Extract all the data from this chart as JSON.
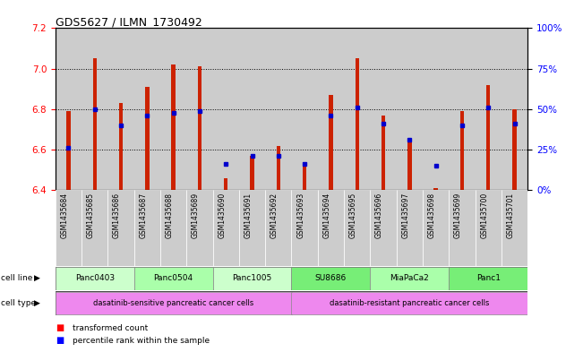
{
  "title": "GDS5627 / ILMN_1730492",
  "samples": [
    "GSM1435684",
    "GSM1435685",
    "GSM1435686",
    "GSM1435687",
    "GSM1435688",
    "GSM1435689",
    "GSM1435690",
    "GSM1435691",
    "GSM1435692",
    "GSM1435693",
    "GSM1435694",
    "GSM1435695",
    "GSM1435696",
    "GSM1435697",
    "GSM1435698",
    "GSM1435699",
    "GSM1435700",
    "GSM1435701"
  ],
  "red_values": [
    6.79,
    7.05,
    6.83,
    6.91,
    7.02,
    7.01,
    6.46,
    6.57,
    6.62,
    6.52,
    6.87,
    7.05,
    6.77,
    6.65,
    6.41,
    6.79,
    6.92,
    6.8
  ],
  "blue_values": [
    6.61,
    6.8,
    6.72,
    6.77,
    6.78,
    6.79,
    6.53,
    6.57,
    6.57,
    6.53,
    6.77,
    6.81,
    6.73,
    6.65,
    6.52,
    6.72,
    6.81,
    6.73
  ],
  "ylim_left": [
    6.4,
    7.2
  ],
  "ylim_right": [
    0,
    100
  ],
  "yticks_left": [
    6.4,
    6.6,
    6.8,
    7.0,
    7.2
  ],
  "yticks_right": [
    0,
    25,
    50,
    75,
    100
  ],
  "ytick_labels_right": [
    "0%",
    "25%",
    "50%",
    "75%",
    "100%"
  ],
  "cell_lines": [
    {
      "label": "Panc0403",
      "start": 0,
      "end": 2
    },
    {
      "label": "Panc0504",
      "start": 3,
      "end": 5
    },
    {
      "label": "Panc1005",
      "start": 6,
      "end": 8
    },
    {
      "label": "SU8686",
      "start": 9,
      "end": 11
    },
    {
      "label": "MiaPaCa2",
      "start": 12,
      "end": 14
    },
    {
      "label": "Panc1",
      "start": 15,
      "end": 17
    }
  ],
  "cell_line_colors": [
    "#ccffcc",
    "#aaffaa",
    "#ccffcc",
    "#77ee77",
    "#aaffaa",
    "#77ee77"
  ],
  "cell_type_colors": [
    "#ee88ee",
    "#ee88ee"
  ],
  "cell_type_labels": [
    "dasatinib-sensitive pancreatic cancer cells",
    "dasatinib-resistant pancreatic cancer cells"
  ],
  "cell_type_ranges": [
    [
      0,
      8
    ],
    [
      9,
      17
    ]
  ],
  "bar_color": "#cc2200",
  "marker_color": "#0000cc",
  "sample_col_color": "#cccccc",
  "bar_width": 0.15
}
